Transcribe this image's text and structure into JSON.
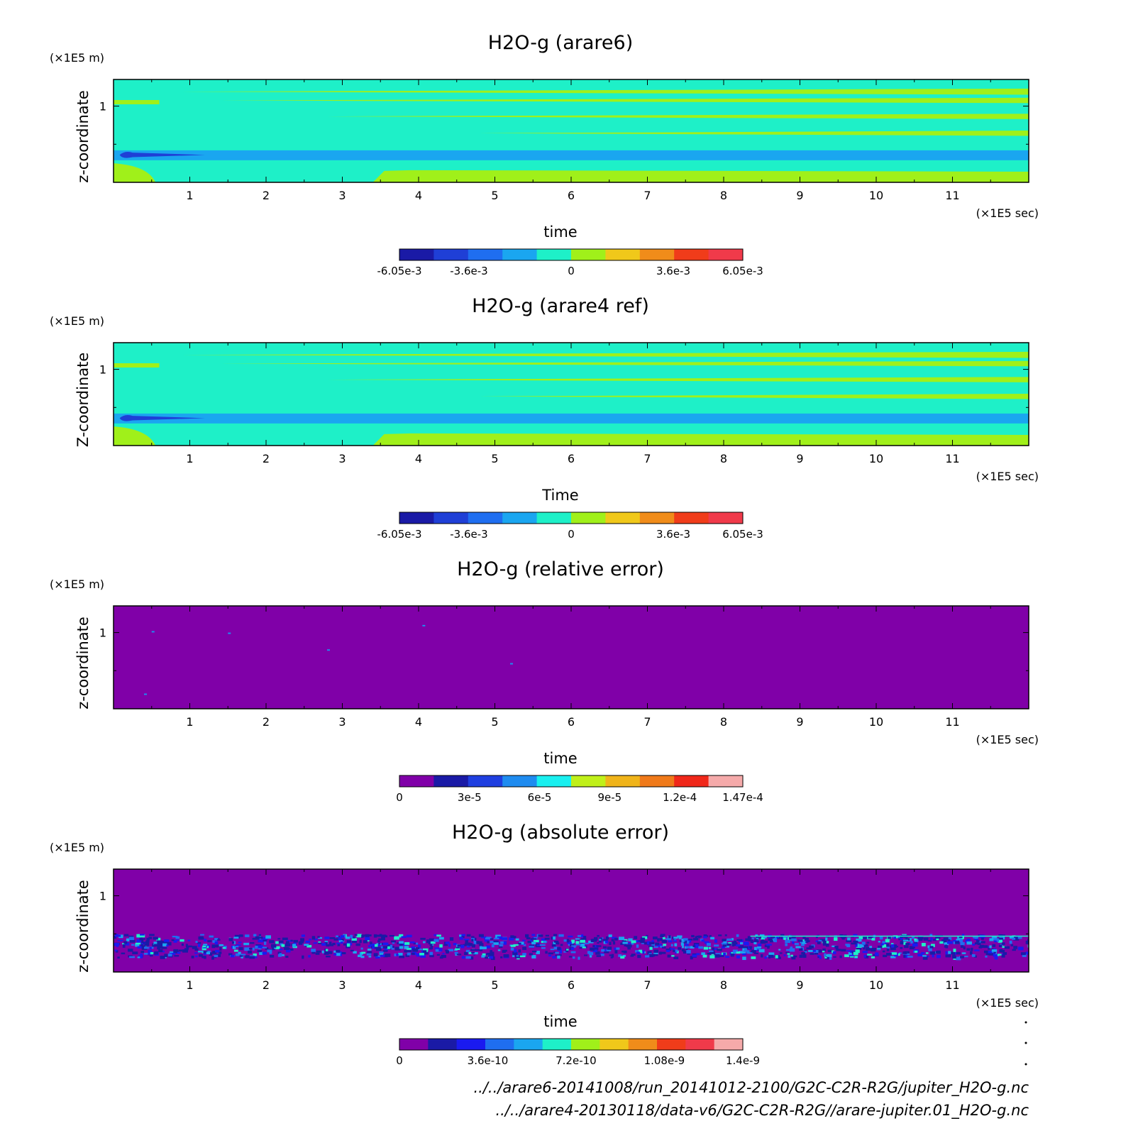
{
  "chart_data": [
    {
      "type": "heatmap",
      "title": "H2O-g (arare6)",
      "xlabel": "time",
      "ylabel": "z-coordinate",
      "x_unit": "(×1E5 sec)",
      "y_unit": "(×1E5 m)",
      "xlim": [
        0,
        12
      ],
      "ylim": [
        0,
        1.35
      ],
      "x_ticks": [
        "1",
        "2",
        "3",
        "4",
        "5",
        "6",
        "7",
        "8",
        "9",
        "10",
        "11"
      ],
      "y_ticks": [
        "1"
      ],
      "colorbar": {
        "colors": [
          "#1a1aa6",
          "#1f3fd6",
          "#1f6ef0",
          "#1aa6f0",
          "#1ef0c8",
          "#a0f01a",
          "#f0c81a",
          "#f08c1a",
          "#f03c1a",
          "#f03a4a"
        ],
        "tick_labels": [
          "-6.05e-3",
          "-3.6e-3",
          "0",
          "3.6e-3",
          "6.05e-3"
        ],
        "range": [
          -0.00605,
          0.00605
        ]
      },
      "pattern": "layered"
    },
    {
      "type": "heatmap",
      "title": "H2O-g (arare4 ref)",
      "xlabel": "Time",
      "ylabel": "Z-coordinate",
      "x_unit": "(×1E5 sec)",
      "y_unit": "(×1E5 m)",
      "xlim": [
        0,
        12
      ],
      "ylim": [
        0,
        1.35
      ],
      "x_ticks": [
        "1",
        "2",
        "3",
        "4",
        "5",
        "6",
        "7",
        "8",
        "9",
        "10",
        "11"
      ],
      "y_ticks": [
        "1"
      ],
      "colorbar": {
        "colors": [
          "#1a1aa6",
          "#1f3fd6",
          "#1f6ef0",
          "#1aa6f0",
          "#1ef0c8",
          "#a0f01a",
          "#f0c81a",
          "#f08c1a",
          "#f03c1a",
          "#f03a4a"
        ],
        "tick_labels": [
          "-6.05e-3",
          "-3.6e-3",
          "0",
          "3.6e-3",
          "6.05e-3"
        ],
        "range": [
          -0.00605,
          0.00605
        ]
      },
      "pattern": "layered"
    },
    {
      "type": "heatmap",
      "title": "H2O-g (relative error)",
      "xlabel": "time",
      "ylabel": "z-coordinate",
      "x_unit": "(×1E5 sec)",
      "y_unit": "(×1E5 m)",
      "xlim": [
        0,
        12
      ],
      "ylim": [
        0,
        1.35
      ],
      "x_ticks": [
        "1",
        "2",
        "3",
        "4",
        "5",
        "6",
        "7",
        "8",
        "9",
        "10",
        "11"
      ],
      "y_ticks": [
        "1"
      ],
      "colorbar": {
        "colors": [
          "#8000a8",
          "#1a1aa6",
          "#1f3fe0",
          "#1f8cf0",
          "#1af0f0",
          "#c0f01a",
          "#f0b41a",
          "#f07a1a",
          "#f0281a",
          "#f5aaaa"
        ],
        "tick_labels": [
          "0",
          "3e-5",
          "6e-5",
          "9e-5",
          "1.2e-4",
          "1.47e-4"
        ],
        "range": [
          0,
          0.000147
        ]
      },
      "pattern": "uniform"
    },
    {
      "type": "heatmap",
      "title": "H2O-g (absolute error)",
      "xlabel": "time",
      "ylabel": "z-coordinate",
      "x_unit": "(×1E5 sec)",
      "y_unit": "(×1E5 m)",
      "xlim": [
        0,
        12
      ],
      "ylim": [
        0,
        1.35
      ],
      "x_ticks": [
        "1",
        "2",
        "3",
        "4",
        "5",
        "6",
        "7",
        "8",
        "9",
        "10",
        "11"
      ],
      "y_ticks": [
        "1"
      ],
      "colorbar": {
        "colors": [
          "#8000a8",
          "#1a1aa6",
          "#1a1af0",
          "#1f6ef0",
          "#1aa6f0",
          "#1ef0c8",
          "#a0f01a",
          "#f0c81a",
          "#f08c1a",
          "#f03c1a",
          "#f03a4a",
          "#f5aaaa"
        ],
        "tick_labels": [
          "0",
          "3.6e-10",
          "7.2e-10",
          "1.08e-9",
          "1.4e-9"
        ],
        "range": [
          0,
          1.4e-09
        ]
      },
      "pattern": "noisy"
    }
  ],
  "file_paths": [
    "../../arare6-20141008/run_20141012-2100/G2C-C2R-R2G/jupiter_H2O-g.nc",
    "../../arare4-20130118/data-v6/G2C-C2R-R2G//arare-jupiter.01_H2O-g.nc"
  ]
}
